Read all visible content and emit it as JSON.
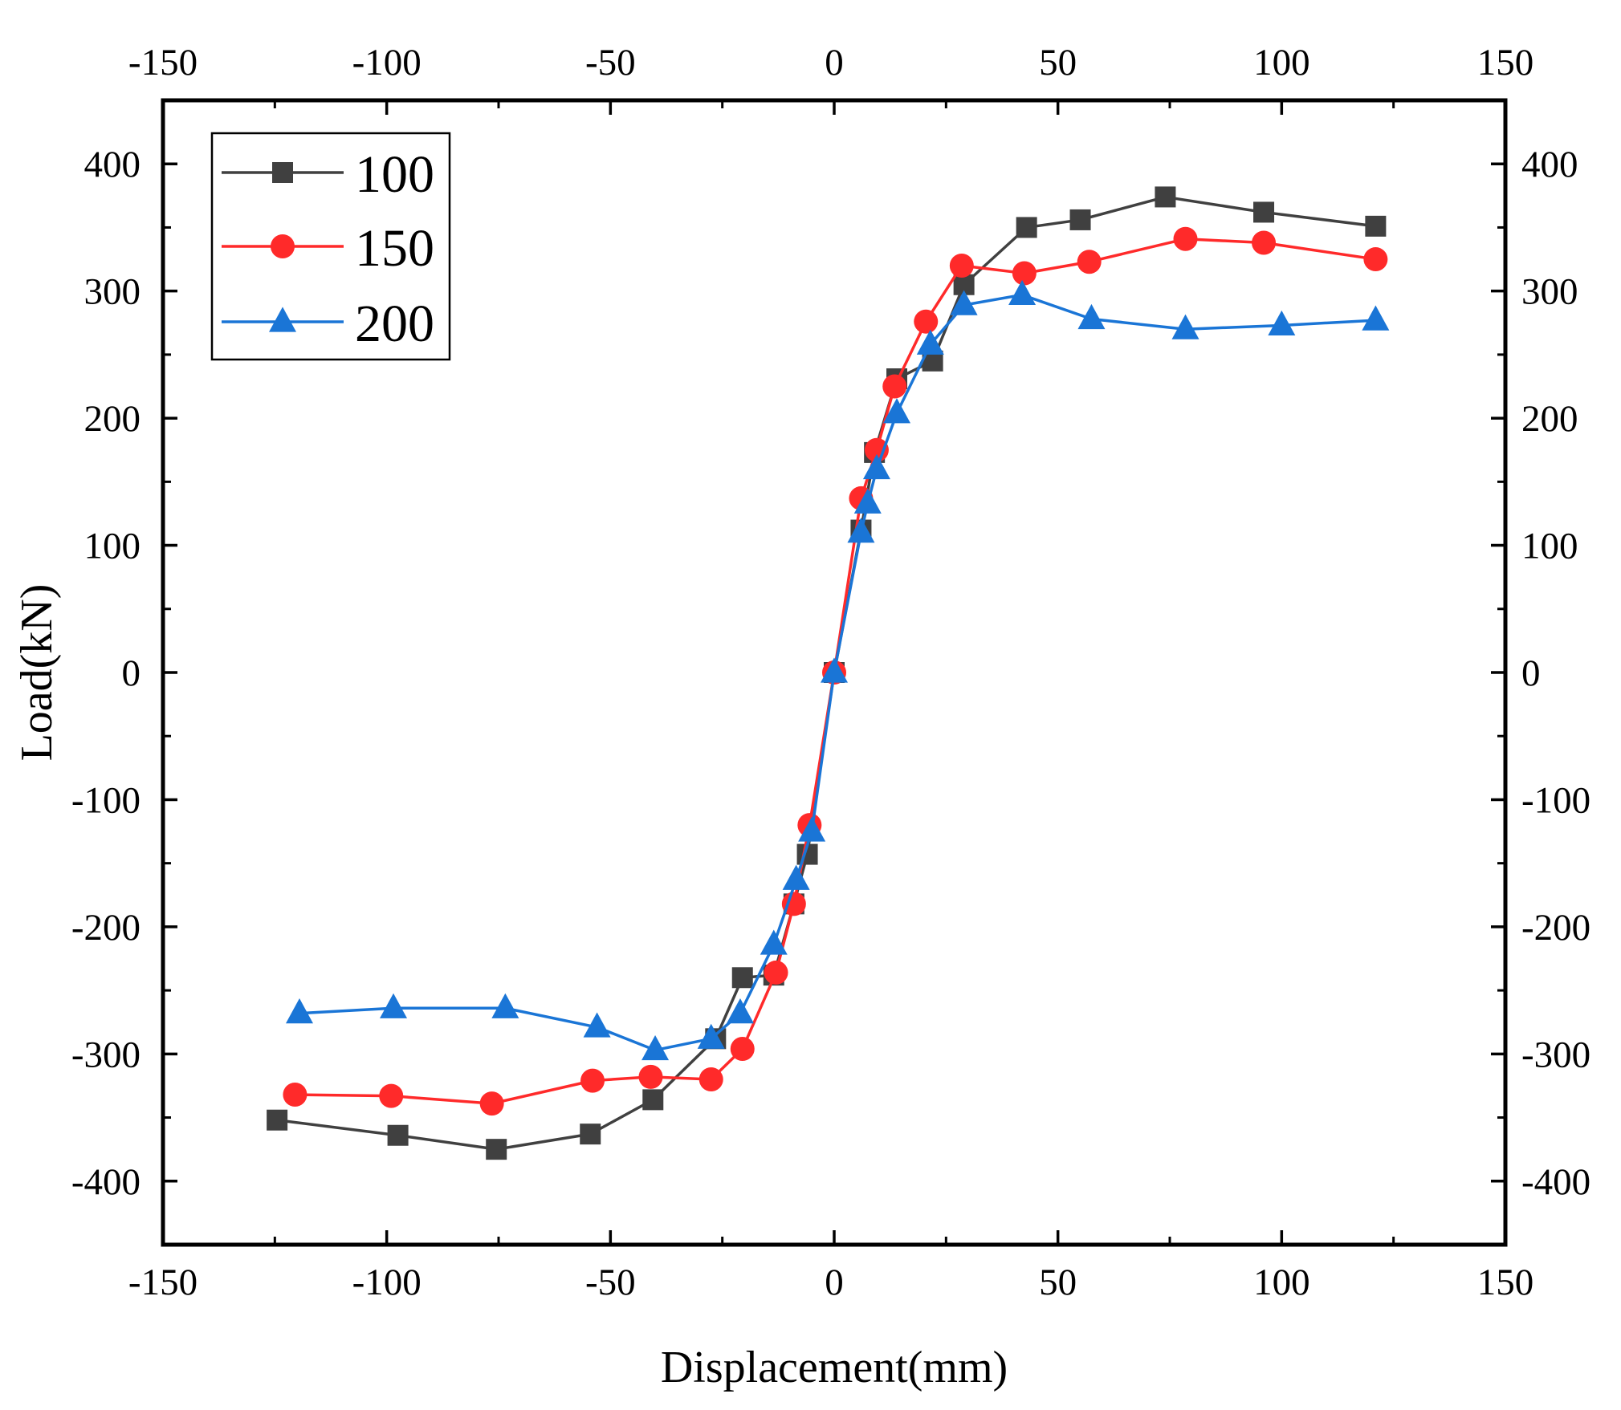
{
  "chart_data": {
    "type": "line",
    "title": "",
    "xlabel": "Displacement(mm)",
    "ylabel": "Load(kN)",
    "xlim": [
      -150,
      150
    ],
    "ylim": [
      -450,
      450
    ],
    "xticks": [
      -150,
      -100,
      -50,
      0,
      50,
      100,
      150
    ],
    "yticks": [
      -400,
      -300,
      -200,
      -100,
      0,
      100,
      200,
      300,
      400
    ],
    "grid": false,
    "legend_position": "top-left",
    "series": [
      {
        "name": "100",
        "color": "#404040",
        "marker": "square",
        "x": [
          -124.5,
          -97.5,
          -75.5,
          -54.5,
          -40.5,
          -26.5,
          -20.5,
          -13.5,
          -9.0,
          -6.0,
          0,
          6.0,
          9.0,
          14.0,
          22.0,
          29.0,
          43.0,
          55.0,
          74.0,
          96.0,
          121.0
        ],
        "y": [
          -352,
          -364,
          -375,
          -363,
          -336,
          -288,
          -240,
          -238,
          -182,
          -143,
          0,
          112,
          173,
          231,
          245,
          305,
          350,
          356,
          374,
          362,
          351
        ]
      },
      {
        "name": "150",
        "color": "#ff2a2a",
        "marker": "circle",
        "x": [
          -120.5,
          -99.0,
          -76.5,
          -54.0,
          -41.0,
          -27.5,
          -20.5,
          -13.0,
          -9.0,
          -5.5,
          0,
          6.0,
          9.5,
          13.5,
          20.5,
          28.5,
          42.5,
          57.0,
          78.5,
          96.0,
          121.0
        ],
        "y": [
          -332,
          -333,
          -339,
          -321,
          -318,
          -320,
          -296,
          -236,
          -182,
          -120,
          0,
          137,
          175,
          225,
          276,
          320,
          314,
          323,
          341,
          338,
          325
        ]
      },
      {
        "name": "200",
        "color": "#1a75d6",
        "marker": "triangle",
        "x": [
          -119.5,
          -98.5,
          -73.5,
          -53.0,
          -40.0,
          -27.5,
          -21.0,
          -13.5,
          -8.5,
          -5.0,
          0,
          6.0,
          7.5,
          9.5,
          14.0,
          21.5,
          29.0,
          42.0,
          57.5,
          78.5,
          100.0,
          121.0
        ],
        "y": [
          -268,
          -264,
          -264,
          -279,
          -297,
          -288,
          -268,
          -214,
          -163,
          -125,
          0,
          110,
          133,
          160,
          204,
          258,
          289,
          297,
          278,
          270,
          273,
          277
        ]
      }
    ]
  }
}
